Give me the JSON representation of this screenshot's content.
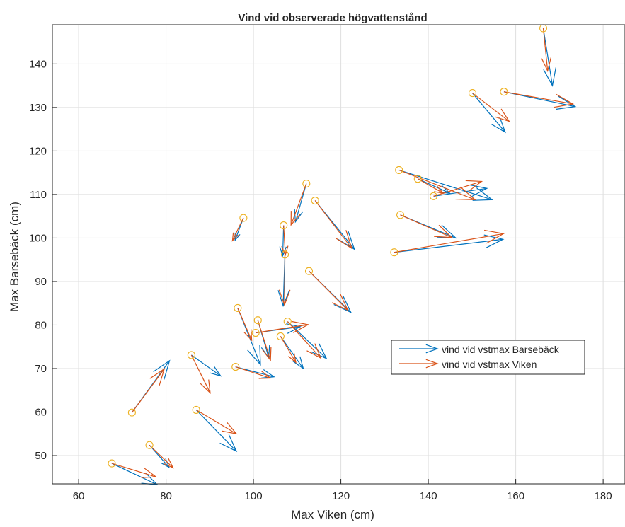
{
  "chart_data": {
    "type": "quiver",
    "title": "Vind vid observerade högvattenstånd",
    "xlabel": "Max Viken (cm)",
    "ylabel": "Max Barsebäck (cm)",
    "xlim": [
      54,
      185
    ],
    "ylim": [
      43.5,
      149
    ],
    "xticks": [
      60,
      80,
      100,
      120,
      140,
      160,
      180
    ],
    "yticks": [
      50,
      60,
      70,
      80,
      90,
      100,
      110,
      120,
      130,
      140
    ],
    "grid": true,
    "legend_position": "right-middle",
    "marker_color": "#edb120",
    "series": [
      {
        "name": "vind vid vstmax Barsebäck",
        "color": "#0072bd",
        "vectors": [
          {
            "x": 67.6,
            "y": 48.2,
            "u": 10.4,
            "v": -4.9
          },
          {
            "x": 72.2,
            "y": 59.9,
            "u": 8.6,
            "v": 11.9
          },
          {
            "x": 76.2,
            "y": 52.4,
            "u": 4.5,
            "v": -5.1
          },
          {
            "x": 85.8,
            "y": 73.1,
            "u": 6.7,
            "v": -4.8
          },
          {
            "x": 86.9,
            "y": 60.5,
            "u": 9.2,
            "v": -9.5
          },
          {
            "x": 95.9,
            "y": 70.4,
            "u": 8.8,
            "v": -2.3
          },
          {
            "x": 96.4,
            "y": 83.9,
            "u": 5.2,
            "v": -13.0
          },
          {
            "x": 97.7,
            "y": 104.6,
            "u": -1.9,
            "v": -5.1
          },
          {
            "x": 100.5,
            "y": 78.2,
            "u": 10.2,
            "v": 1.4
          },
          {
            "x": 101.0,
            "y": 81.1,
            "u": 2.5,
            "v": -8.6
          },
          {
            "x": 106.2,
            "y": 77.4,
            "u": 5.2,
            "v": -7.4
          },
          {
            "x": 106.9,
            "y": 102.9,
            "u": -0.2,
            "v": -7.0
          },
          {
            "x": 107.2,
            "y": 96.2,
            "u": -0.4,
            "v": -11.8
          },
          {
            "x": 107.8,
            "y": 80.8,
            "u": 8.9,
            "v": -8.5
          },
          {
            "x": 112.1,
            "y": 112.5,
            "u": -2.5,
            "v": -8.8
          },
          {
            "x": 112.7,
            "y": 92.4,
            "u": 9.6,
            "v": -9.5
          },
          {
            "x": 114.1,
            "y": 108.6,
            "u": 9.0,
            "v": -11.2
          },
          {
            "x": 132.2,
            "y": 96.7,
            "u": 24.9,
            "v": 3.0
          },
          {
            "x": 133.3,
            "y": 115.6,
            "u": 21.3,
            "v": -6.8
          },
          {
            "x": 133.6,
            "y": 105.3,
            "u": 12.7,
            "v": -5.3
          },
          {
            "x": 137.6,
            "y": 113.6,
            "u": 7.3,
            "v": -3.3
          },
          {
            "x": 141.2,
            "y": 109.6,
            "u": 12.2,
            "v": 1.8
          },
          {
            "x": 150.1,
            "y": 133.3,
            "u": 7.5,
            "v": -9.0
          },
          {
            "x": 157.3,
            "y": 133.6,
            "u": 16.3,
            "v": -3.4
          },
          {
            "x": 166.3,
            "y": 148.2,
            "u": 2.1,
            "v": -13.2
          }
        ]
      },
      {
        "name": "vind vid vstmax Viken",
        "color": "#d95319",
        "vectors": [
          {
            "x": 67.6,
            "y": 48.2,
            "u": 10.1,
            "v": -3.1
          },
          {
            "x": 72.2,
            "y": 59.9,
            "u": 7.4,
            "v": 10.0
          },
          {
            "x": 76.2,
            "y": 52.4,
            "u": 5.4,
            "v": -5.2
          },
          {
            "x": 85.8,
            "y": 73.1,
            "u": 4.3,
            "v": -8.7
          },
          {
            "x": 86.9,
            "y": 60.5,
            "u": 9.2,
            "v": -5.5
          },
          {
            "x": 95.9,
            "y": 70.4,
            "u": 8.0,
            "v": -2.6
          },
          {
            "x": 96.4,
            "y": 83.9,
            "u": 3.2,
            "v": -7.4
          },
          {
            "x": 97.7,
            "y": 104.6,
            "u": -2.5,
            "v": -5.2
          },
          {
            "x": 100.5,
            "y": 78.2,
            "u": 12.0,
            "v": 1.9
          },
          {
            "x": 101.0,
            "y": 81.1,
            "u": 2.9,
            "v": -9.2
          },
          {
            "x": 106.2,
            "y": 77.4,
            "u": 3.5,
            "v": -6.0
          },
          {
            "x": 106.9,
            "y": 102.9,
            "u": 0.4,
            "v": -6.8
          },
          {
            "x": 107.2,
            "y": 96.2,
            "u": -0.1,
            "v": -11.6
          },
          {
            "x": 107.8,
            "y": 80.8,
            "u": 7.6,
            "v": -8.4
          },
          {
            "x": 112.1,
            "y": 112.5,
            "u": -3.5,
            "v": -9.5
          },
          {
            "x": 112.7,
            "y": 92.4,
            "u": 8.9,
            "v": -9.0
          },
          {
            "x": 114.1,
            "y": 108.6,
            "u": 8.4,
            "v": -11.0
          },
          {
            "x": 132.2,
            "y": 96.7,
            "u": 25.0,
            "v": 4.3
          },
          {
            "x": 133.3,
            "y": 115.6,
            "u": 17.4,
            "v": -6.8
          },
          {
            "x": 133.6,
            "y": 105.3,
            "u": 11.8,
            "v": -5.2
          },
          {
            "x": 137.6,
            "y": 113.6,
            "u": 5.8,
            "v": -3.3
          },
          {
            "x": 141.2,
            "y": 109.6,
            "u": 11.0,
            "v": 3.4
          },
          {
            "x": 150.1,
            "y": 133.3,
            "u": 8.4,
            "v": -6.5
          },
          {
            "x": 157.3,
            "y": 133.6,
            "u": 15.8,
            "v": -2.8
          },
          {
            "x": 166.3,
            "y": 148.2,
            "u": 1.0,
            "v": -9.8
          }
        ]
      }
    ]
  }
}
